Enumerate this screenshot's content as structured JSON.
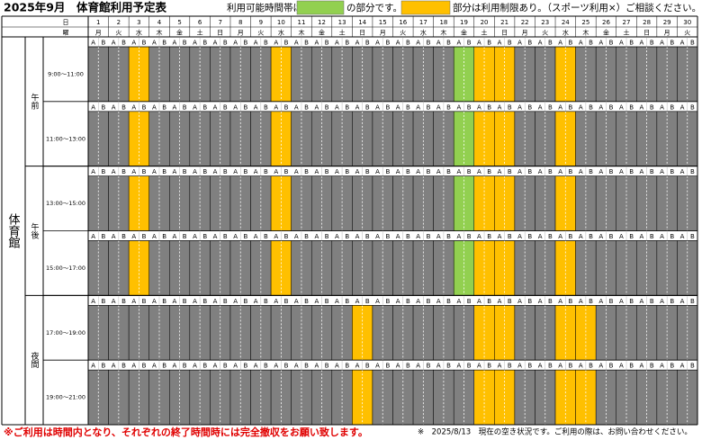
{
  "header": {
    "title": "2025年9月　体育館利用予定表",
    "legend_prefix": "利用可能時間帯は",
    "legend_available_color": "#92d050",
    "legend_available_text": "の部分です。",
    "legend_limited_color": "#ffc000",
    "legend_limited_text": "部分は利用制限あり。（スポーツ利用×）ご相談ください。"
  },
  "table": {
    "day_header": "日",
    "weekday_header": "曜",
    "facility": "体育館",
    "sub_columns": [
      "A",
      "B"
    ],
    "days": [
      1,
      2,
      3,
      4,
      5,
      6,
      7,
      8,
      9,
      10,
      11,
      12,
      13,
      14,
      15,
      16,
      17,
      18,
      19,
      20,
      21,
      22,
      23,
      24,
      25,
      26,
      27,
      28,
      29,
      30
    ],
    "weekdays": [
      "月",
      "火",
      "水",
      "木",
      "金",
      "土",
      "日",
      "月",
      "火",
      "水",
      "木",
      "金",
      "土",
      "日",
      "月",
      "火",
      "水",
      "木",
      "金",
      "土",
      "日",
      "月",
      "火",
      "水",
      "木",
      "金",
      "土",
      "日",
      "月",
      "火"
    ],
    "periods": [
      {
        "label": "午前",
        "slots": [
          {
            "time": "9:00～11:00",
            "colors": [
              "#808080",
              "#808080",
              "#ffc000",
              "#808080",
              "#808080",
              "#808080",
              "#808080",
              "#808080",
              "#808080",
              "#ffc000",
              "#808080",
              "#808080",
              "#808080",
              "#808080",
              "#808080",
              "#808080",
              "#808080",
              "#808080",
              "#92d050",
              "#ffc000",
              "#ffc000",
              "#808080",
              "#808080",
              "#ffc000",
              "#808080",
              "#808080",
              "#808080",
              "#808080",
              "#808080",
              "#808080"
            ]
          },
          {
            "time": "11:00～13:00",
            "colors": [
              "#808080",
              "#808080",
              "#ffc000",
              "#808080",
              "#808080",
              "#808080",
              "#808080",
              "#808080",
              "#808080",
              "#ffc000",
              "#808080",
              "#808080",
              "#808080",
              "#808080",
              "#808080",
              "#808080",
              "#808080",
              "#808080",
              "#92d050",
              "#ffc000",
              "#ffc000",
              "#808080",
              "#808080",
              "#ffc000",
              "#808080",
              "#808080",
              "#808080",
              "#808080",
              "#808080",
              "#808080"
            ]
          }
        ]
      },
      {
        "label": "午後",
        "slots": [
          {
            "time": "13:00～15:00",
            "colors": [
              "#808080",
              "#808080",
              "#ffc000",
              "#808080",
              "#808080",
              "#808080",
              "#808080",
              "#808080",
              "#808080",
              "#ffc000",
              "#808080",
              "#808080",
              "#808080",
              "#808080",
              "#808080",
              "#808080",
              "#808080",
              "#808080",
              "#92d050",
              "#ffc000",
              "#ffc000",
              "#808080",
              "#808080",
              "#ffc000",
              "#808080",
              "#808080",
              "#808080",
              "#808080",
              "#808080",
              "#808080"
            ]
          },
          {
            "time": "15:00～17:00",
            "colors": [
              "#808080",
              "#808080",
              "#ffc000",
              "#808080",
              "#808080",
              "#808080",
              "#808080",
              "#808080",
              "#808080",
              "#ffc000",
              "#808080",
              "#808080",
              "#808080",
              "#808080",
              "#808080",
              "#808080",
              "#808080",
              "#808080",
              "#92d050",
              "#ffc000",
              "#ffc000",
              "#808080",
              "#808080",
              "#ffc000",
              "#808080",
              "#808080",
              "#808080",
              "#808080",
              "#808080",
              "#808080"
            ]
          }
        ]
      },
      {
        "label": "夜間",
        "slots": [
          {
            "time": "17:00～19:00",
            "colors": [
              "#808080",
              "#808080",
              "#808080",
              "#808080",
              "#808080",
              "#808080",
              "#808080",
              "#808080",
              "#808080",
              "#808080",
              "#808080",
              "#808080",
              "#808080",
              "#ffc000",
              "#808080",
              "#808080",
              "#808080",
              "#808080",
              "#808080",
              "#ffc000",
              "#ffc000",
              "#808080",
              "#808080",
              "#ffc000",
              "#ffc000",
              "#808080",
              "#808080",
              "#808080",
              "#808080",
              "#808080"
            ]
          },
          {
            "time": "19:00～21:00",
            "colors": [
              "#808080",
              "#808080",
              "#808080",
              "#808080",
              "#808080",
              "#808080",
              "#808080",
              "#808080",
              "#808080",
              "#808080",
              "#808080",
              "#808080",
              "#808080",
              "#ffc000",
              "#808080",
              "#808080",
              "#808080",
              "#808080",
              "#808080",
              "#ffc000",
              "#ffc000",
              "#808080",
              "#808080",
              "#ffc000",
              "#ffc000",
              "#808080",
              "#808080",
              "#808080",
              "#808080",
              "#808080"
            ]
          }
        ]
      }
    ]
  },
  "footer": {
    "notice": "※ご利用は時間内となり、それぞれの終了時間時には完全撤収をお願い致します。",
    "status_note": "※　2025/8/13　現在の空き状況です。ご利用の際は、お問い合わせください。"
  }
}
